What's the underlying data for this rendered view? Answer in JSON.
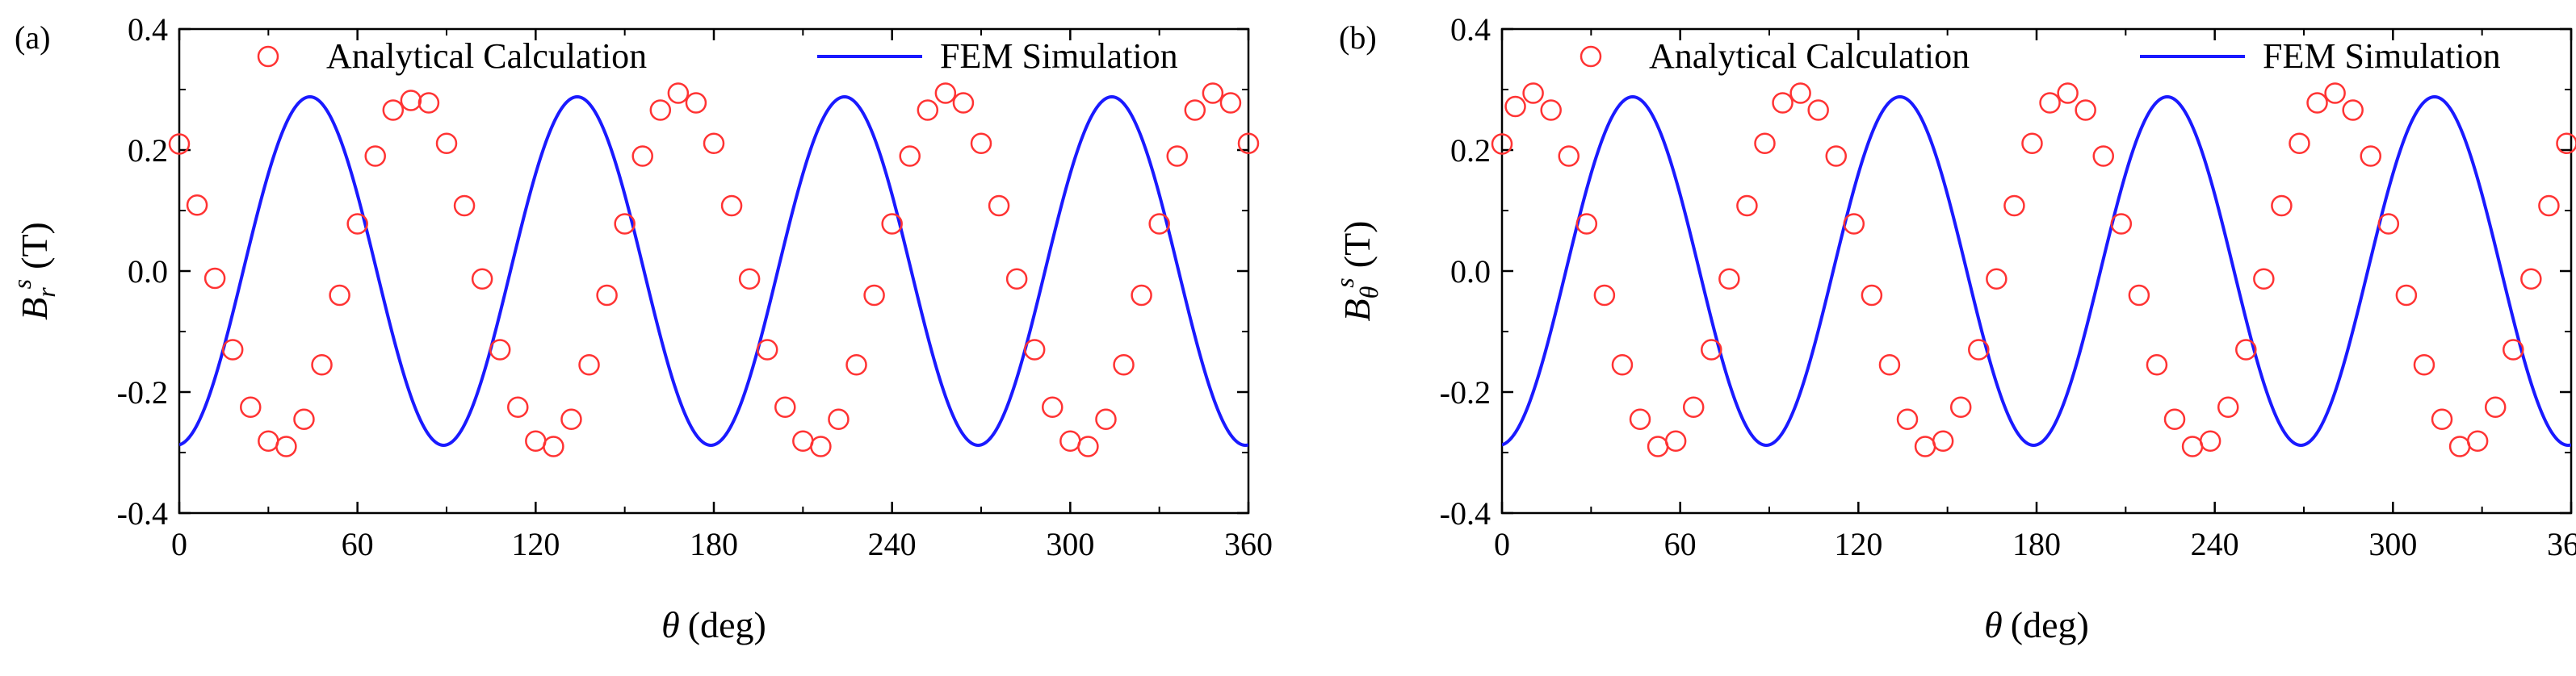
{
  "chart_data": [
    {
      "type": "line",
      "panel_label": "(a)",
      "xlabel_symbol": "θ",
      "xlabel_unit": "(deg)",
      "ylabel_main": "B",
      "ylabel_sub": "r",
      "ylabel_sup": "s",
      "ylabel_unit": "(T)",
      "xlim": [
        0,
        360
      ],
      "ylim": [
        -0.4,
        0.4
      ],
      "xticks": [
        0,
        60,
        120,
        180,
        240,
        300,
        360
      ],
      "xtick_labels": [
        "0",
        "60",
        "120",
        "180",
        "240",
        "300",
        "360"
      ],
      "yticks": [
        -0.4,
        -0.2,
        0.0,
        0.2,
        0.4
      ],
      "ytick_labels": [
        "-0.4",
        "-0.2",
        "0.0",
        "0.2",
        "0.4"
      ],
      "legend": [
        "Analytical Calculation",
        "FEM Simulation"
      ],
      "legend_position": "top",
      "series": [
        {
          "name": "Analytical Calculation",
          "marker": "circle",
          "color": "#ff3333",
          "x": [
            0,
            6,
            12,
            18,
            24,
            30,
            36,
            42,
            48,
            54,
            60,
            66,
            72,
            78,
            84,
            90,
            96,
            102,
            108,
            114,
            120,
            126,
            132,
            138,
            144,
            150,
            156,
            162,
            168,
            174,
            180,
            186,
            192,
            198,
            204,
            210,
            216,
            222,
            228,
            234,
            240,
            246,
            252,
            258,
            264,
            270,
            276,
            282,
            288,
            294,
            300,
            306,
            312,
            318,
            324,
            330,
            336,
            342,
            348,
            354,
            360
          ],
          "y": [
            0.21,
            0.109,
            -0.012,
            -0.13,
            -0.225,
            -0.281,
            -0.29,
            -0.245,
            -0.155,
            -0.04,
            0.078,
            0.19,
            0.266,
            0.282,
            0.278,
            0.211,
            0.108,
            -0.013,
            -0.13,
            -0.225,
            -0.281,
            -0.29,
            -0.245,
            -0.155,
            -0.04,
            0.078,
            0.19,
            0.266,
            0.294,
            0.278,
            0.211,
            0.108,
            -0.013,
            -0.13,
            -0.225,
            -0.281,
            -0.29,
            -0.245,
            -0.155,
            -0.04,
            0.078,
            0.19,
            0.266,
            0.294,
            0.278,
            0.211,
            0.108,
            -0.013,
            -0.13,
            -0.225,
            -0.281,
            -0.29,
            -0.245,
            -0.155,
            -0.04,
            0.078,
            0.19,
            0.266,
            0.294,
            0.278,
            0.211
          ]
        },
        {
          "name": "FEM Simulation",
          "line": "solid",
          "color": "#1a1aff",
          "amplitude": 0.288,
          "period": 90,
          "phase_deg": 44
        }
      ]
    },
    {
      "type": "line",
      "panel_label": "(b)",
      "xlabel_symbol": "θ",
      "xlabel_unit": "(deg)",
      "ylabel_main": "B",
      "ylabel_sub": "θ",
      "ylabel_sup": "s",
      "ylabel_unit": "(T)",
      "xlim": [
        0,
        360
      ],
      "ylim": [
        -0.4,
        0.4
      ],
      "xticks": [
        0,
        60,
        120,
        180,
        240,
        300,
        360
      ],
      "xtick_labels": [
        "0",
        "60",
        "120",
        "180",
        "240",
        "300",
        "360"
      ],
      "yticks": [
        -0.4,
        -0.2,
        0.0,
        0.2,
        0.4
      ],
      "ytick_labels": [
        "-0.4",
        "-0.2",
        "0.0",
        "0.2",
        "0.4"
      ],
      "legend": [
        "Analytical Calculation",
        "FEM Simulation"
      ],
      "legend_position": "top",
      "series": [
        {
          "name": "Analytical Calculation",
          "marker": "circle",
          "color": "#ff3333",
          "x": [
            0,
            4.5,
            10.5,
            16.5,
            22.5,
            28.5,
            34.5,
            40.5,
            46.5,
            52.5,
            58.5,
            64.5,
            70.5,
            76.5,
            82.5,
            88.5,
            94.5,
            100.5,
            106.5,
            112.5,
            118.5,
            124.5,
            130.5,
            136.5,
            142.5,
            148.5,
            154.5,
            160.5,
            166.5,
            172.5,
            178.5,
            184.5,
            190.5,
            196.5,
            202.5,
            208.5,
            214.5,
            220.5,
            226.5,
            232.5,
            238.5,
            244.5,
            250.5,
            256.5,
            262.5,
            268.5,
            274.5,
            280.5,
            286.5,
            292.5,
            298.5,
            304.5,
            310.5,
            316.5,
            322.5,
            328.5,
            334.5,
            340.5,
            346.5,
            352.5,
            358.5
          ],
          "y": [
            0.21,
            0.272,
            0.294,
            0.266,
            0.19,
            0.078,
            -0.04,
            -0.155,
            -0.245,
            -0.29,
            -0.281,
            -0.225,
            -0.13,
            -0.013,
            0.108,
            0.211,
            0.278,
            0.294,
            0.266,
            0.19,
            0.078,
            -0.04,
            -0.155,
            -0.245,
            -0.29,
            -0.281,
            -0.225,
            -0.13,
            -0.013,
            0.108,
            0.211,
            0.278,
            0.294,
            0.266,
            0.19,
            0.078,
            -0.04,
            -0.155,
            -0.245,
            -0.29,
            -0.281,
            -0.225,
            -0.13,
            -0.013,
            0.108,
            0.211,
            0.278,
            0.294,
            0.266,
            0.19,
            0.078,
            -0.04,
            -0.155,
            -0.245,
            -0.29,
            -0.281,
            -0.225,
            -0.13,
            -0.013,
            0.108,
            0.211
          ]
        },
        {
          "name": "FEM Simulation",
          "line": "solid",
          "color": "#1a1aff",
          "amplitude": 0.288,
          "period": 90,
          "phase_deg": 134
        }
      ]
    }
  ]
}
